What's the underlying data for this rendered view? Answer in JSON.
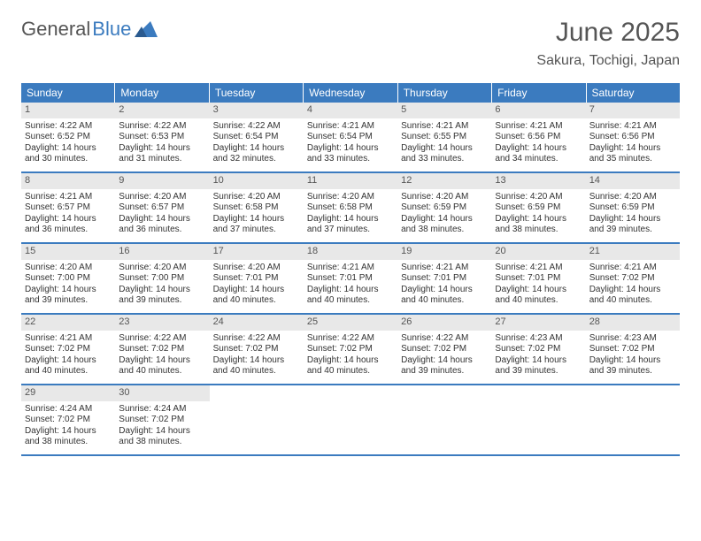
{
  "logo": {
    "text1": "General",
    "text2": "Blue"
  },
  "title": "June 2025",
  "location": "Sakura, Tochigi, Japan",
  "day_names": [
    "Sunday",
    "Monday",
    "Tuesday",
    "Wednesday",
    "Thursday",
    "Friday",
    "Saturday"
  ],
  "colors": {
    "header_bg": "#3b7bbf",
    "header_text": "#ffffff",
    "daynum_bg": "#e8e8e8",
    "border": "#3b7bbf",
    "text": "#333333",
    "muted": "#555555"
  },
  "weeks": [
    [
      {
        "n": "1",
        "sunrise": "Sunrise: 4:22 AM",
        "sunset": "Sunset: 6:52 PM",
        "day1": "Daylight: 14 hours",
        "day2": "and 30 minutes."
      },
      {
        "n": "2",
        "sunrise": "Sunrise: 4:22 AM",
        "sunset": "Sunset: 6:53 PM",
        "day1": "Daylight: 14 hours",
        "day2": "and 31 minutes."
      },
      {
        "n": "3",
        "sunrise": "Sunrise: 4:22 AM",
        "sunset": "Sunset: 6:54 PM",
        "day1": "Daylight: 14 hours",
        "day2": "and 32 minutes."
      },
      {
        "n": "4",
        "sunrise": "Sunrise: 4:21 AM",
        "sunset": "Sunset: 6:54 PM",
        "day1": "Daylight: 14 hours",
        "day2": "and 33 minutes."
      },
      {
        "n": "5",
        "sunrise": "Sunrise: 4:21 AM",
        "sunset": "Sunset: 6:55 PM",
        "day1": "Daylight: 14 hours",
        "day2": "and 33 minutes."
      },
      {
        "n": "6",
        "sunrise": "Sunrise: 4:21 AM",
        "sunset": "Sunset: 6:56 PM",
        "day1": "Daylight: 14 hours",
        "day2": "and 34 minutes."
      },
      {
        "n": "7",
        "sunrise": "Sunrise: 4:21 AM",
        "sunset": "Sunset: 6:56 PM",
        "day1": "Daylight: 14 hours",
        "day2": "and 35 minutes."
      }
    ],
    [
      {
        "n": "8",
        "sunrise": "Sunrise: 4:21 AM",
        "sunset": "Sunset: 6:57 PM",
        "day1": "Daylight: 14 hours",
        "day2": "and 36 minutes."
      },
      {
        "n": "9",
        "sunrise": "Sunrise: 4:20 AM",
        "sunset": "Sunset: 6:57 PM",
        "day1": "Daylight: 14 hours",
        "day2": "and 36 minutes."
      },
      {
        "n": "10",
        "sunrise": "Sunrise: 4:20 AM",
        "sunset": "Sunset: 6:58 PM",
        "day1": "Daylight: 14 hours",
        "day2": "and 37 minutes."
      },
      {
        "n": "11",
        "sunrise": "Sunrise: 4:20 AM",
        "sunset": "Sunset: 6:58 PM",
        "day1": "Daylight: 14 hours",
        "day2": "and 37 minutes."
      },
      {
        "n": "12",
        "sunrise": "Sunrise: 4:20 AM",
        "sunset": "Sunset: 6:59 PM",
        "day1": "Daylight: 14 hours",
        "day2": "and 38 minutes."
      },
      {
        "n": "13",
        "sunrise": "Sunrise: 4:20 AM",
        "sunset": "Sunset: 6:59 PM",
        "day1": "Daylight: 14 hours",
        "day2": "and 38 minutes."
      },
      {
        "n": "14",
        "sunrise": "Sunrise: 4:20 AM",
        "sunset": "Sunset: 6:59 PM",
        "day1": "Daylight: 14 hours",
        "day2": "and 39 minutes."
      }
    ],
    [
      {
        "n": "15",
        "sunrise": "Sunrise: 4:20 AM",
        "sunset": "Sunset: 7:00 PM",
        "day1": "Daylight: 14 hours",
        "day2": "and 39 minutes."
      },
      {
        "n": "16",
        "sunrise": "Sunrise: 4:20 AM",
        "sunset": "Sunset: 7:00 PM",
        "day1": "Daylight: 14 hours",
        "day2": "and 39 minutes."
      },
      {
        "n": "17",
        "sunrise": "Sunrise: 4:20 AM",
        "sunset": "Sunset: 7:01 PM",
        "day1": "Daylight: 14 hours",
        "day2": "and 40 minutes."
      },
      {
        "n": "18",
        "sunrise": "Sunrise: 4:21 AM",
        "sunset": "Sunset: 7:01 PM",
        "day1": "Daylight: 14 hours",
        "day2": "and 40 minutes."
      },
      {
        "n": "19",
        "sunrise": "Sunrise: 4:21 AM",
        "sunset": "Sunset: 7:01 PM",
        "day1": "Daylight: 14 hours",
        "day2": "and 40 minutes."
      },
      {
        "n": "20",
        "sunrise": "Sunrise: 4:21 AM",
        "sunset": "Sunset: 7:01 PM",
        "day1": "Daylight: 14 hours",
        "day2": "and 40 minutes."
      },
      {
        "n": "21",
        "sunrise": "Sunrise: 4:21 AM",
        "sunset": "Sunset: 7:02 PM",
        "day1": "Daylight: 14 hours",
        "day2": "and 40 minutes."
      }
    ],
    [
      {
        "n": "22",
        "sunrise": "Sunrise: 4:21 AM",
        "sunset": "Sunset: 7:02 PM",
        "day1": "Daylight: 14 hours",
        "day2": "and 40 minutes."
      },
      {
        "n": "23",
        "sunrise": "Sunrise: 4:22 AM",
        "sunset": "Sunset: 7:02 PM",
        "day1": "Daylight: 14 hours",
        "day2": "and 40 minutes."
      },
      {
        "n": "24",
        "sunrise": "Sunrise: 4:22 AM",
        "sunset": "Sunset: 7:02 PM",
        "day1": "Daylight: 14 hours",
        "day2": "and 40 minutes."
      },
      {
        "n": "25",
        "sunrise": "Sunrise: 4:22 AM",
        "sunset": "Sunset: 7:02 PM",
        "day1": "Daylight: 14 hours",
        "day2": "and 40 minutes."
      },
      {
        "n": "26",
        "sunrise": "Sunrise: 4:22 AM",
        "sunset": "Sunset: 7:02 PM",
        "day1": "Daylight: 14 hours",
        "day2": "and 39 minutes."
      },
      {
        "n": "27",
        "sunrise": "Sunrise: 4:23 AM",
        "sunset": "Sunset: 7:02 PM",
        "day1": "Daylight: 14 hours",
        "day2": "and 39 minutes."
      },
      {
        "n": "28",
        "sunrise": "Sunrise: 4:23 AM",
        "sunset": "Sunset: 7:02 PM",
        "day1": "Daylight: 14 hours",
        "day2": "and 39 minutes."
      }
    ],
    [
      {
        "n": "29",
        "sunrise": "Sunrise: 4:24 AM",
        "sunset": "Sunset: 7:02 PM",
        "day1": "Daylight: 14 hours",
        "day2": "and 38 minutes."
      },
      {
        "n": "30",
        "sunrise": "Sunrise: 4:24 AM",
        "sunset": "Sunset: 7:02 PM",
        "day1": "Daylight: 14 hours",
        "day2": "and 38 minutes."
      },
      null,
      null,
      null,
      null,
      null
    ]
  ]
}
